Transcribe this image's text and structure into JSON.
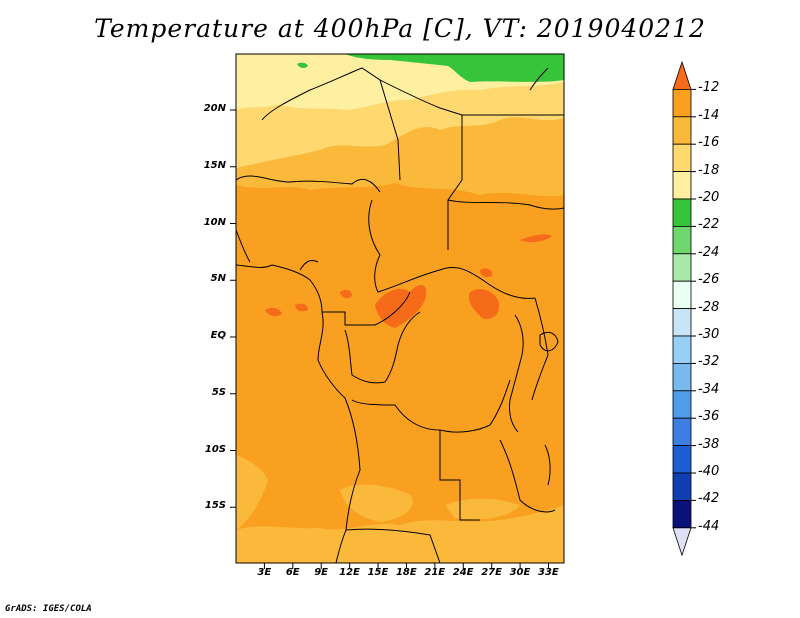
{
  "title": "Temperature at 400hPa [C], VT: 2019040212",
  "credit": "GrADS: IGES/COLA",
  "lat_labels": [
    {
      "text": "20N",
      "lat": 20
    },
    {
      "text": "15N",
      "lat": 15
    },
    {
      "text": "10N",
      "lat": 10
    },
    {
      "text": "5N",
      "lat": 5
    },
    {
      "text": "EQ",
      "lat": 0
    },
    {
      "text": "5S",
      "lat": -5
    },
    {
      "text": "10S",
      "lat": -10
    },
    {
      "text": "15S",
      "lat": -15
    }
  ],
  "lon_labels": [
    {
      "text": "3E",
      "lon": 3
    },
    {
      "text": "6E",
      "lon": 6
    },
    {
      "text": "9E",
      "lon": 9
    },
    {
      "text": "12E",
      "lon": 12
    },
    {
      "text": "15E",
      "lon": 15
    },
    {
      "text": "18E",
      "lon": 18
    },
    {
      "text": "21E",
      "lon": 21
    },
    {
      "text": "24E",
      "lon": 24
    },
    {
      "text": "27E",
      "lon": 27
    },
    {
      "text": "30E",
      "lon": 30
    },
    {
      "text": "33E",
      "lon": 33
    }
  ],
  "colorbar": {
    "labels": [
      "-12",
      "-14",
      "-16",
      "-18",
      "-20",
      "-22",
      "-24",
      "-26",
      "-28",
      "-30",
      "-32",
      "-34",
      "-36",
      "-38",
      "-40",
      "-42",
      "-44"
    ],
    "colors": [
      "#f56b1a",
      "#f9a020",
      "#fbb93c",
      "#ffd970",
      "#ffefa0",
      "#36c43a",
      "#6ed76e",
      "#a8e8a8",
      "#ebfff3",
      "#c8e6f7",
      "#96d0f7",
      "#78b9f0",
      "#4f9ceb",
      "#3c7ee2",
      "#1e5ed3",
      "#0f3fb0",
      "#0a117a",
      "#e1e1f5"
    ]
  }
}
